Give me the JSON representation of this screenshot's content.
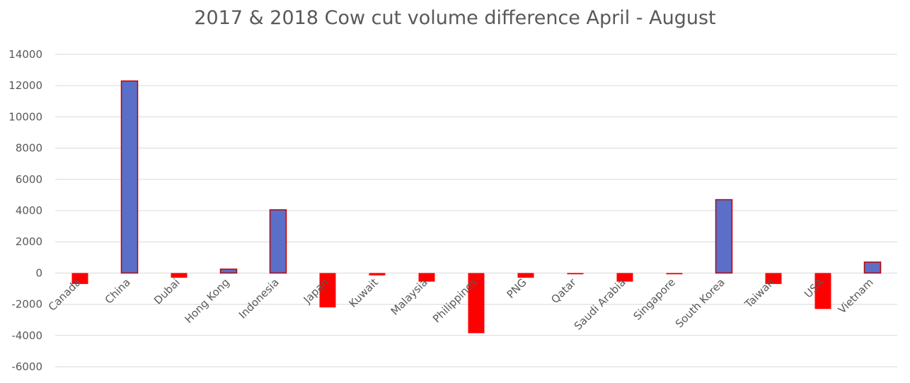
{
  "chart_data": {
    "type": "bar",
    "title": "2017 & 2018 Cow cut volume difference April - August",
    "xlabel": "",
    "ylabel": "",
    "categories": [
      "Canada",
      "China",
      "Dubai",
      "Hong Kong",
      "Indonesia",
      "Japan",
      "Kuwait",
      "Malaysia",
      "Philippines",
      "PNG",
      "Qatar",
      "Saudi Arabia",
      "Singapore",
      "South Korea",
      "Taiwan",
      "USA",
      "Vietnam"
    ],
    "values": [
      -700,
      12300,
      -300,
      250,
      4050,
      -2200,
      -150,
      -550,
      -3850,
      -300,
      -80,
      -550,
      -80,
      4700,
      -700,
      -2300,
      700
    ],
    "ylim": [
      -6000,
      14000
    ],
    "yticks": [
      14000,
      12000,
      10000,
      8000,
      6000,
      4000,
      2000,
      0,
      -2000,
      -4000,
      -6000
    ],
    "grid": true,
    "legend": "none",
    "colors": {
      "positive_fill": "#5b6ec8",
      "negative_fill": "#ff0000",
      "bar_stroke": "#c00000",
      "grid": "#d9d9d9",
      "text": "#595959"
    }
  }
}
